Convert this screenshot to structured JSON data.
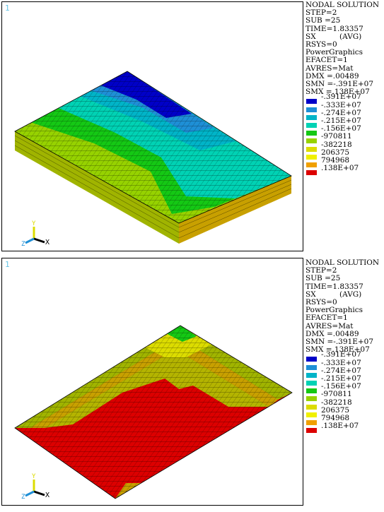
{
  "panels": [
    {
      "number": "1",
      "legend": {
        "lines": [
          "NODAL SOLUTION",
          "STEP=2",
          "SUB =25",
          "TIME=1.83357",
          "SX          (AVG)",
          "RSYS=0",
          "PowerGraphics",
          "EFACET=1",
          "AVRES=Mat",
          "DMX =.00489",
          "SMN =-.391E+07",
          "SMX =.138E+07"
        ],
        "scale_labels": [
          "-.391E+07",
          "-.333E+07",
          "-.274E+07",
          "-.215E+07",
          "-.156E+07",
          "-970811",
          "-382218",
          "206375",
          "794968",
          ".138E+07"
        ]
      },
      "triad": {
        "x": "X",
        "y": "Y",
        "z": "Z"
      }
    },
    {
      "number": "1",
      "legend": {
        "lines": [
          "NODAL SOLUTION",
          "STEP=2",
          "SUB =25",
          "TIME=1.83357",
          "SX          (AVG)",
          "RSYS=0",
          "PowerGraphics",
          "EFACET=1",
          "AVRES=Mat",
          "DMX =.00489",
          "SMN =-.391E+07",
          "SMX =.138E+07"
        ],
        "scale_labels": [
          "-.391E+07",
          "-.333E+07",
          "-.274E+07",
          "-.215E+07",
          "-.156E+07",
          "-970811",
          "-382218",
          "206375",
          "794968",
          ".138E+07"
        ]
      },
      "triad": {
        "x": "X",
        "y": "Y",
        "z": "Z"
      }
    }
  ],
  "colors": {
    "contour": [
      "#0000c8",
      "#1e8fd6",
      "#00b4c8",
      "#00d2b4",
      "#14c814",
      "#96d200",
      "#dcdc00",
      "#f0f000",
      "#f0a000",
      "#dc0000"
    ],
    "panel_number": "#67c4e6"
  }
}
